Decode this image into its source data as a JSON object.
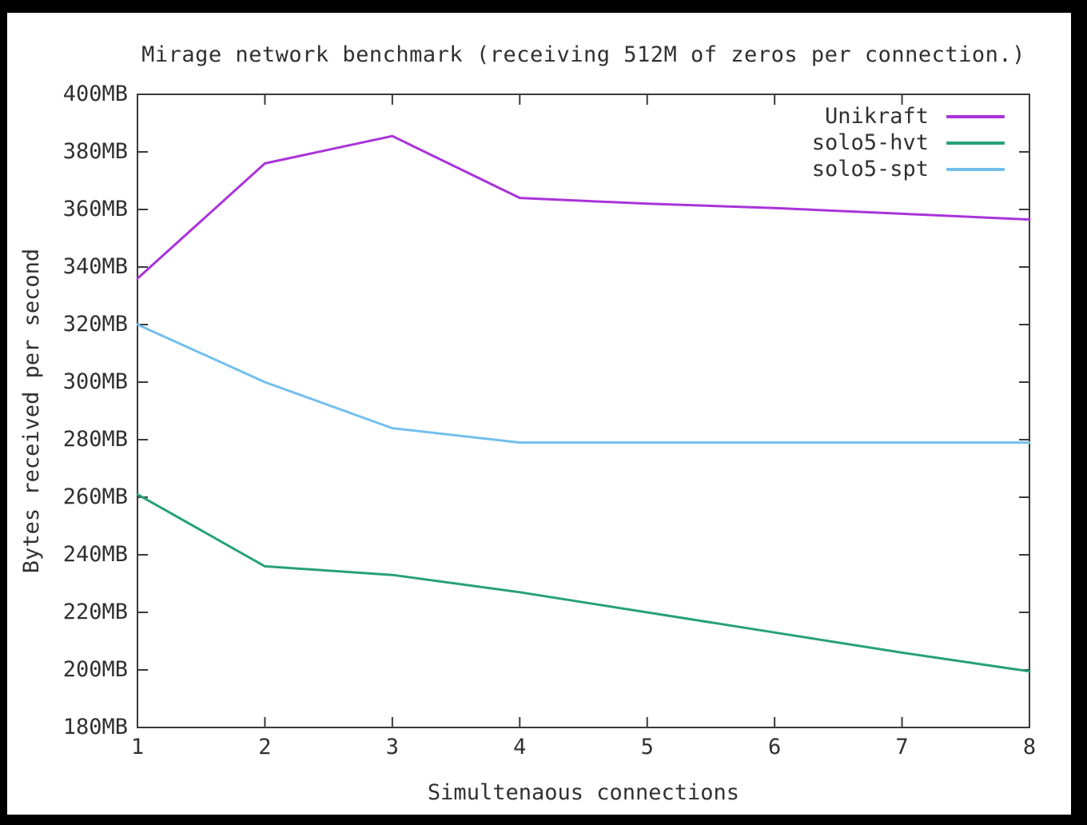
{
  "window": {
    "frame_color": "#000000",
    "panel_color": "#ffffff"
  },
  "chart_data": {
    "type": "line",
    "title": "Mirage network benchmark (receiving 512M of zeros per connection.)",
    "xlabel": "Simultenaous connections",
    "ylabel": "Bytes received per second",
    "xlim": [
      1,
      8
    ],
    "ylim": [
      180,
      400
    ],
    "grid": false,
    "legend_position": "inside top-right",
    "axis_color": "#3a3a3a",
    "text_color": "#303030",
    "x_ticks": [
      {
        "value": 1,
        "label": "1"
      },
      {
        "value": 2,
        "label": "2"
      },
      {
        "value": 3,
        "label": "3"
      },
      {
        "value": 4,
        "label": "4"
      },
      {
        "value": 5,
        "label": "5"
      },
      {
        "value": 6,
        "label": "6"
      },
      {
        "value": 7,
        "label": "7"
      },
      {
        "value": 8,
        "label": "8"
      }
    ],
    "y_ticks": [
      {
        "value": 180,
        "label": "180MB"
      },
      {
        "value": 200,
        "label": "200MB"
      },
      {
        "value": 220,
        "label": "220MB"
      },
      {
        "value": 240,
        "label": "240MB"
      },
      {
        "value": 260,
        "label": "260MB"
      },
      {
        "value": 280,
        "label": "280MB"
      },
      {
        "value": 300,
        "label": "300MB"
      },
      {
        "value": 320,
        "label": "320MB"
      },
      {
        "value": 340,
        "label": "340MB"
      },
      {
        "value": 360,
        "label": "360MB"
      },
      {
        "value": 380,
        "label": "380MB"
      },
      {
        "value": 400,
        "label": "400MB"
      }
    ],
    "x": [
      1,
      2,
      3,
      4,
      5,
      6,
      7,
      8
    ],
    "series": [
      {
        "name": "Unikraft",
        "color": "#a933d9",
        "values": [
          336,
          376,
          385.5,
          364,
          362,
          360.5,
          358.5,
          356.5
        ]
      },
      {
        "name": "solo5-hvt",
        "color": "#27a079",
        "values": [
          261,
          236,
          233,
          227,
          220,
          213,
          206,
          199.5
        ]
      },
      {
        "name": "solo5-spt",
        "color": "#72bfec",
        "values": [
          320,
          300,
          284,
          279,
          279,
          279,
          279,
          279
        ]
      }
    ]
  }
}
